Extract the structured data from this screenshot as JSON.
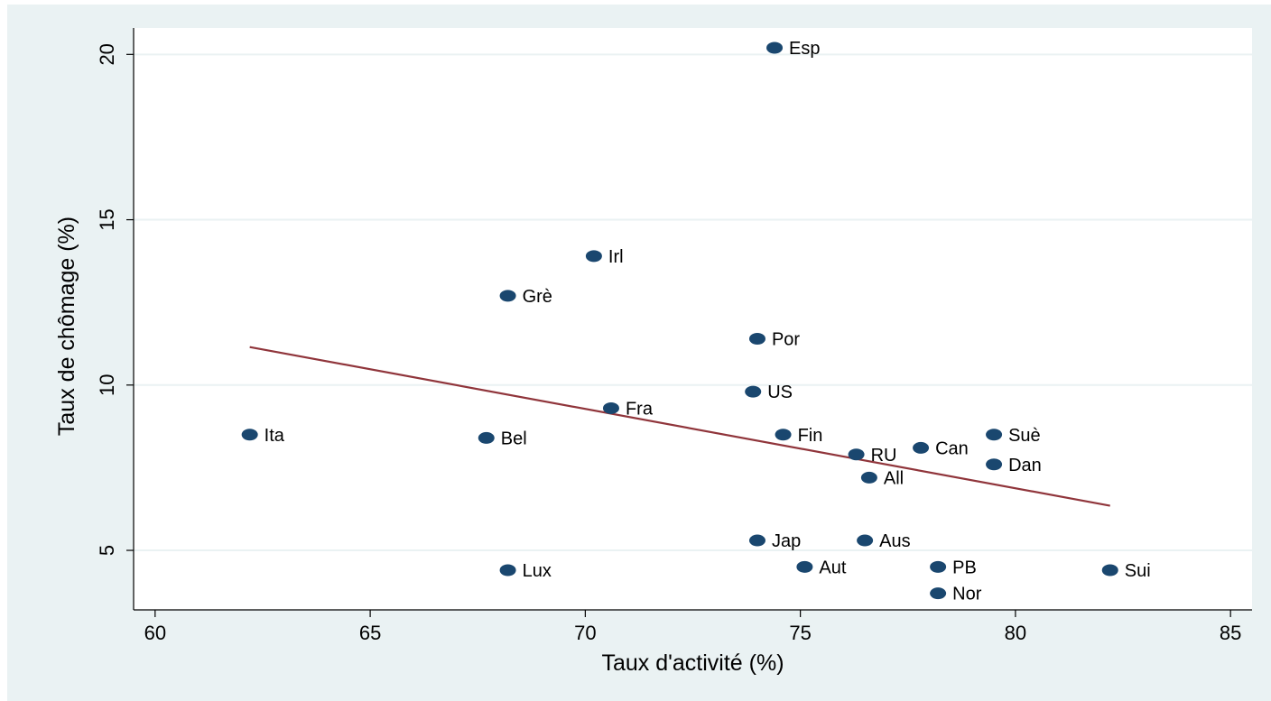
{
  "chart_data": {
    "type": "scatter",
    "title": "",
    "xlabel": "Taux d'activité (%)",
    "ylabel": "Taux de chômage (%)",
    "xlim": [
      59.5,
      85.5
    ],
    "ylim": [
      3.2,
      20.8
    ],
    "xticks": [
      60,
      65,
      70,
      75,
      80,
      85
    ],
    "yticks": [
      5,
      10,
      15,
      20
    ],
    "grid": "horizontal",
    "colors": {
      "background": "#eaf2f3",
      "plot_area": "#ffffff",
      "marker": "#1a476f",
      "fit_line": "#90353b",
      "grid": "#eaf2f3"
    },
    "points": [
      {
        "label": "Esp",
        "x": 74.4,
        "y": 20.2
      },
      {
        "label": "Irl",
        "x": 70.2,
        "y": 13.9
      },
      {
        "label": "Grè",
        "x": 68.2,
        "y": 12.7
      },
      {
        "label": "Por",
        "x": 74.0,
        "y": 11.4
      },
      {
        "label": "US",
        "x": 73.9,
        "y": 9.8
      },
      {
        "label": "Fra",
        "x": 70.6,
        "y": 9.3
      },
      {
        "label": "Ita",
        "x": 62.2,
        "y": 8.5
      },
      {
        "label": "Bel",
        "x": 67.7,
        "y": 8.4
      },
      {
        "label": "Fin",
        "x": 74.6,
        "y": 8.5
      },
      {
        "label": "RU",
        "x": 76.3,
        "y": 7.9
      },
      {
        "label": "Can",
        "x": 77.8,
        "y": 8.1
      },
      {
        "label": "Suè",
        "x": 79.5,
        "y": 8.5
      },
      {
        "label": "Dan",
        "x": 79.5,
        "y": 7.6
      },
      {
        "label": "All",
        "x": 76.6,
        "y": 7.2
      },
      {
        "label": "Jap",
        "x": 74.0,
        "y": 5.3
      },
      {
        "label": "Aus",
        "x": 76.5,
        "y": 5.3
      },
      {
        "label": "Lux",
        "x": 68.2,
        "y": 4.4
      },
      {
        "label": "Aut",
        "x": 75.1,
        "y": 4.5
      },
      {
        "label": "PB",
        "x": 78.2,
        "y": 4.5
      },
      {
        "label": "Sui",
        "x": 82.2,
        "y": 4.4
      },
      {
        "label": "Nor",
        "x": 78.2,
        "y": 3.7
      }
    ],
    "fit_line": {
      "x": [
        62.2,
        82.2
      ],
      "y": [
        11.15,
        6.35
      ]
    }
  }
}
